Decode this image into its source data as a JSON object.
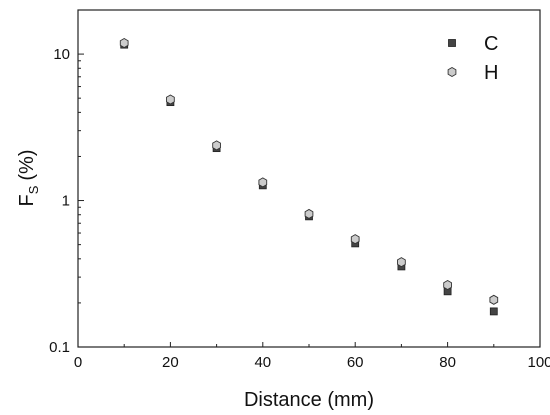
{
  "chart_data": {
    "type": "scatter",
    "xlabel": "Distance (mm)",
    "ylabel_main": "F",
    "ylabel_sub": "S",
    "ylabel_unit": "(%)",
    "xlim": [
      0,
      100
    ],
    "ylim": [
      0.1,
      20
    ],
    "yscale": "log",
    "grid": false,
    "legend_position": "top-right",
    "x_ticks": [
      0,
      20,
      40,
      60,
      80,
      100
    ],
    "y_ticks": [
      0.1,
      1,
      10
    ],
    "x_tick_labels": [
      "0",
      "20",
      "40",
      "60",
      "80",
      "100"
    ],
    "y_tick_labels": [
      "0.1",
      "1",
      "10"
    ],
    "series": [
      {
        "name": "C",
        "marker": "square",
        "color": "#444444",
        "x": [
          10,
          20,
          30,
          40,
          50,
          60,
          70,
          80,
          90
        ],
        "y": [
          11.6,
          4.7,
          2.28,
          1.27,
          0.78,
          0.51,
          0.355,
          0.24,
          0.175
        ]
      },
      {
        "name": "H",
        "marker": "hexagon",
        "color": "#cccccc",
        "x": [
          10,
          20,
          30,
          40,
          50,
          60,
          70,
          80,
          90
        ],
        "y": [
          11.9,
          4.9,
          2.38,
          1.33,
          0.81,
          0.545,
          0.38,
          0.265,
          0.21
        ]
      }
    ]
  }
}
